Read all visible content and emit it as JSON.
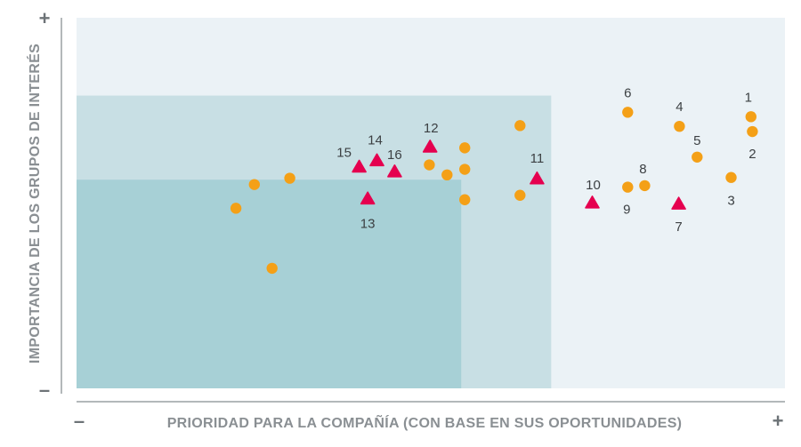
{
  "chart_data": {
    "type": "scatter",
    "title": "",
    "xlabel": "PRIORIDAD PARA LA COMPAÑÍA (CON BASE EN SUS OPORTUNIDADES)",
    "ylabel": "IMPORTANCIA DE LOS GRUPOS DE INTERÉS",
    "x_min_label": "–",
    "x_max_label": "+",
    "y_min_label": "–",
    "y_max_label": "+",
    "xlim": [
      0,
      100
    ],
    "ylim": [
      0,
      100
    ],
    "grid": false,
    "legend": "none",
    "regions": [
      {
        "x0": 0,
        "x1": 100,
        "y0": 0,
        "y1": 100,
        "color": "#ebf2f6"
      },
      {
        "x0": 0,
        "x1": 67,
        "y0": 0,
        "y1": 79,
        "color": "#c8dfe4"
      },
      {
        "x0": 0,
        "x1": 54.3,
        "y0": 0,
        "y1": 56.3,
        "color": "#a7d0d6"
      }
    ],
    "series": [
      {
        "marker": "circle",
        "color": "#f4a017",
        "points": [
          {
            "label": "1",
            "x": 95.2,
            "y": 73.3
          },
          {
            "label": "2",
            "x": 95.4,
            "y": 69.3
          },
          {
            "label": "3",
            "x": 92.4,
            "y": 56.9
          },
          {
            "label": "4",
            "x": 85.1,
            "y": 70.7
          },
          {
            "label": "5",
            "x": 87.6,
            "y": 62.4
          },
          {
            "label": "6",
            "x": 77.8,
            "y": 74.5
          },
          {
            "label": "8",
            "x": 80.2,
            "y": 54.7
          },
          {
            "label": "9",
            "x": 77.8,
            "y": 54.3
          },
          {
            "label": "",
            "x": 62.6,
            "y": 70.9
          },
          {
            "label": "",
            "x": 54.8,
            "y": 64.9
          },
          {
            "label": "",
            "x": 54.8,
            "y": 59.1
          },
          {
            "label": "",
            "x": 52.3,
            "y": 57.6
          },
          {
            "label": "",
            "x": 49.8,
            "y": 60.3
          },
          {
            "label": "",
            "x": 54.8,
            "y": 50.9
          },
          {
            "label": "",
            "x": 62.6,
            "y": 52.1
          },
          {
            "label": "",
            "x": 30.1,
            "y": 56.7
          },
          {
            "label": "",
            "x": 25.1,
            "y": 55.0
          },
          {
            "label": "",
            "x": 22.5,
            "y": 48.6
          },
          {
            "label": "",
            "x": 27.6,
            "y": 32.4
          }
        ]
      },
      {
        "marker": "triangle",
        "color": "#e5004f",
        "points": [
          {
            "label": "7",
            "x": 85.0,
            "y": 49.6
          },
          {
            "label": "10",
            "x": 72.8,
            "y": 49.9
          },
          {
            "label": "11",
            "x": 65.0,
            "y": 56.4
          },
          {
            "label": "12",
            "x": 49.9,
            "y": 65.0
          },
          {
            "label": "13",
            "x": 41.1,
            "y": 51.0
          },
          {
            "label": "14",
            "x": 42.4,
            "y": 61.3
          },
          {
            "label": "15",
            "x": 39.9,
            "y": 59.6
          },
          {
            "label": "16",
            "x": 44.9,
            "y": 58.3
          }
        ]
      }
    ]
  }
}
